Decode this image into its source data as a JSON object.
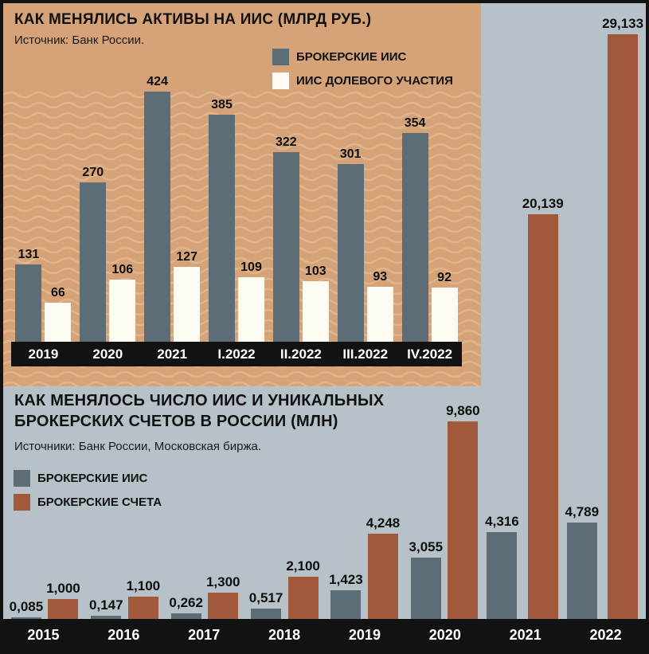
{
  "colors": {
    "panel_tan": "#d6a378",
    "wave": "#e1b58b",
    "background_gray": "#b6c2c8",
    "bar_gray": "#5d6d78",
    "bar_white": "#fdfaf2",
    "bar_brown": "#a0593a",
    "axis_black": "#121212",
    "text_black": "#111111",
    "axis_text_white": "#ffffff"
  },
  "chart_data": [
    {
      "type": "bar",
      "title": "КАК МЕНЯЛИСЬ АКТИВЫ НА ИИС (МЛРД РУБ.)",
      "source": "Источник: Банк России.",
      "unit": "млрд руб.",
      "legend_position": "top-right",
      "categories": [
        "2019",
        "2020",
        "2021",
        "I.2022",
        "II.2022",
        "III.2022",
        "IV.2022"
      ],
      "series": [
        {
          "name": "БРОКЕРСКИЕ ИИС",
          "color": "#5d6d78",
          "values": [
            131,
            270,
            424,
            385,
            322,
            301,
            354
          ],
          "labels": [
            "131",
            "270",
            "424",
            "385",
            "322",
            "301",
            "354"
          ]
        },
        {
          "name": "ИИС ДОЛЕВОГО УЧАСТИЯ",
          "color": "#fdfaf2",
          "values": [
            66,
            106,
            127,
            109,
            103,
            93,
            92
          ],
          "labels": [
            "66",
            "106",
            "127",
            "109",
            "103",
            "93",
            "92"
          ]
        }
      ],
      "legend": [
        {
          "label": "БРОКЕРСКИЕ ИИС",
          "color": "#5d6d78"
        },
        {
          "label": "ИИС ДОЛЕВОГО УЧАСТИЯ",
          "color": "#fdfaf2"
        }
      ],
      "ylim": [
        0,
        450
      ],
      "grid": false
    },
    {
      "type": "bar",
      "title": "КАК МЕНЯЛОСЬ ЧИСЛО ИИС И УНИКАЛЬНЫХ БРОКЕРСКИХ СЧЕТОВ В РОССИИ (МЛН)",
      "title_lines": [
        "КАК МЕНЯЛОСЬ ЧИСЛО ИИС И УНИКАЛЬНЫХ",
        "БРОКЕРСКИХ СЧЕТОВ В РОССИИ (МЛН)"
      ],
      "source": "Источники: Банк России, Московская биржа.",
      "unit": "млн",
      "legend_position": "left",
      "categories": [
        "2015",
        "2016",
        "2017",
        "2018",
        "2019",
        "2020",
        "2021",
        "2022"
      ],
      "series": [
        {
          "name": "БРОКЕРСКИЕ ИИС",
          "color": "#5d6d78",
          "values": [
            0.085,
            0.147,
            0.262,
            0.517,
            1.423,
            3.055,
            4.316,
            4.789
          ],
          "labels": [
            "0,085",
            "0,147",
            "0,262",
            "0,517",
            "1,423",
            "3,055",
            "4,316",
            "4,789"
          ]
        },
        {
          "name": "БРОКЕРСКИЕ СЧЕТА",
          "color": "#a0593a",
          "values": [
            1.0,
            1.1,
            1.3,
            2.1,
            4.248,
            9.86,
            20.139,
            29.133
          ],
          "labels": [
            "1,000",
            "1,100",
            "1,300",
            "2,100",
            "4,248",
            "9,860",
            "20,139",
            "29,133"
          ]
        }
      ],
      "legend": [
        {
          "label": "БРОКЕРСКИЕ ИИС",
          "color": "#5d6d78"
        },
        {
          "label": "БРОКЕРСКИЕ СЧЕТА",
          "color": "#a0593a"
        }
      ],
      "ylim": [
        0,
        30
      ],
      "grid": false
    }
  ]
}
